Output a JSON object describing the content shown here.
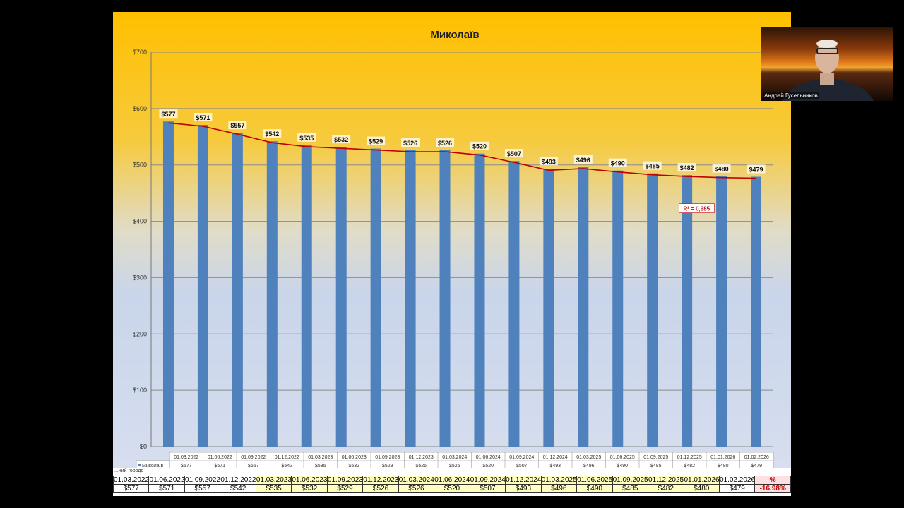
{
  "chart_data": {
    "type": "bar",
    "title": "Миколаїв",
    "categories": [
      "01.03.2022",
      "01.06.2022",
      "01.09.2022",
      "01.12.2022",
      "01.03.2023",
      "01.06.2023",
      "01.09.2023",
      "01.12.2023",
      "01.03.2024",
      "01.06.2024",
      "01.09.2024",
      "01.12.2024",
      "01.03.2025",
      "01.06.2025",
      "01.09.2025",
      "01.12.2025",
      "01.01.2026",
      "01.02.2026"
    ],
    "series": [
      {
        "name": "Миколаїв",
        "values": [
          577,
          571,
          557,
          542,
          535,
          532,
          529,
          526,
          526,
          520,
          507,
          493,
          496,
          490,
          485,
          482,
          480,
          479
        ],
        "color": "#4f81bd"
      }
    ],
    "data_labels": [
      "$577",
      "$571",
      "$557",
      "$542",
      "$535",
      "$532",
      "$529",
      "$526",
      "$526",
      "$520",
      "$507",
      "$493",
      "$496",
      "$490",
      "$485",
      "$482",
      "$480",
      "$479"
    ],
    "ylim": [
      0,
      700
    ],
    "yticks": [
      "$0",
      "$100",
      "$200",
      "$300",
      "$400",
      "$500",
      "$600",
      "$700"
    ],
    "grid": true,
    "trendline": {
      "color": "#c00000",
      "r2_label": "R² = 0,985"
    },
    "legend_key": "Миколаїв"
  },
  "bottom_table": {
    "label": "...ний городо",
    "dates": [
      "01.03.2022",
      "01.06.2022",
      "01.09.2022",
      "01.12.2022",
      "01.03.2023",
      "01.06.2023",
      "01.09.2023",
      "01.12.2023",
      "01.03.2024",
      "01.06.2024",
      "01.09.2024",
      "01.12.2024",
      "01.03.2025",
      "01.06.2025",
      "01.09.2025",
      "01.12.2025",
      "01.01.2026",
      "01.02.2026"
    ],
    "values": [
      "$577",
      "$571",
      "$557",
      "$542",
      "$535",
      "$532",
      "$529",
      "$526",
      "$526",
      "$520",
      "$507",
      "$493",
      "$496",
      "$490",
      "$485",
      "$482",
      "$480",
      "$479"
    ],
    "pct_header": "%",
    "pct_value": "-16,98%",
    "colors": {
      "white": "#ffffff",
      "yellow": "#ffffc0",
      "pct": "#ffe0e0",
      "pct_text": "#c00000"
    }
  },
  "webcam": {
    "name": "Андрей Гусельников"
  }
}
